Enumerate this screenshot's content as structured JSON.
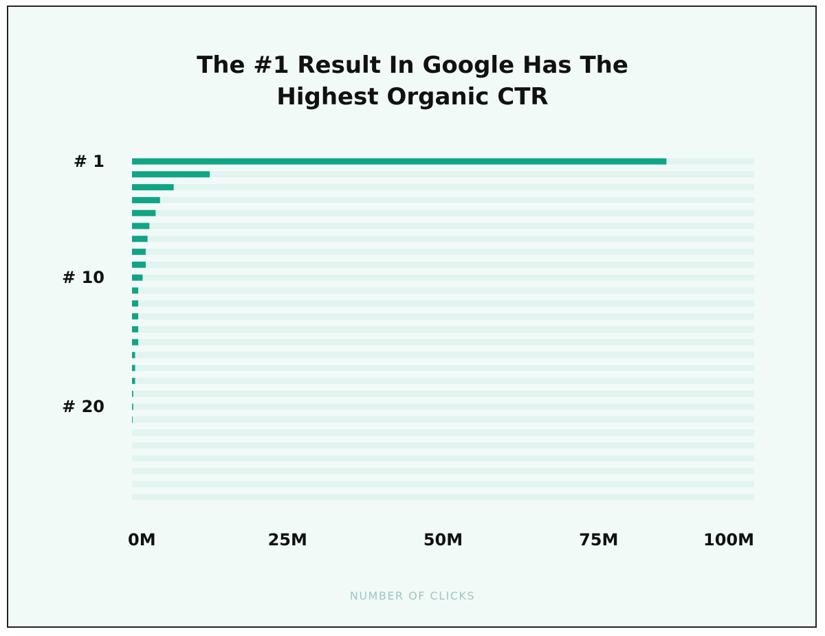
{
  "chart_data": {
    "type": "bar",
    "orientation": "horizontal",
    "title_lines": [
      "The #1 Result In Google Has The",
      "Highest Organic CTR"
    ],
    "xlabel": "NUMBER OF CLICKS",
    "ylabel": "",
    "xlim": [
      0,
      100
    ],
    "x_unit": "M",
    "x_ticks": [
      "0M",
      "25M",
      "50M",
      "75M",
      "100M"
    ],
    "x_tick_values": [
      0,
      25,
      50,
      75,
      100
    ],
    "y_tick_labels": [
      {
        "rank": 1,
        "label": "# 1"
      },
      {
        "rank": 10,
        "label": "# 10"
      },
      {
        "rank": 20,
        "label": "# 20"
      }
    ],
    "categories": [
      1,
      2,
      3,
      4,
      5,
      6,
      7,
      8,
      9,
      10,
      11,
      12,
      13,
      14,
      15,
      16,
      17,
      18,
      19,
      20,
      21,
      22,
      23,
      24,
      25,
      26,
      27
    ],
    "values": [
      85.9,
      12.5,
      6.7,
      4.5,
      3.8,
      2.8,
      2.5,
      2.2,
      2.2,
      1.7,
      1.0,
      1.0,
      1.0,
      1.0,
      1.0,
      0.5,
      0.5,
      0.5,
      0.2,
      0.2,
      0.1,
      0,
      0,
      0,
      0,
      0,
      0
    ],
    "grid": false,
    "legend": "none",
    "colors": {
      "bar": "#10a585",
      "track": "#e1f4ef",
      "background": "#f2faf8"
    }
  }
}
